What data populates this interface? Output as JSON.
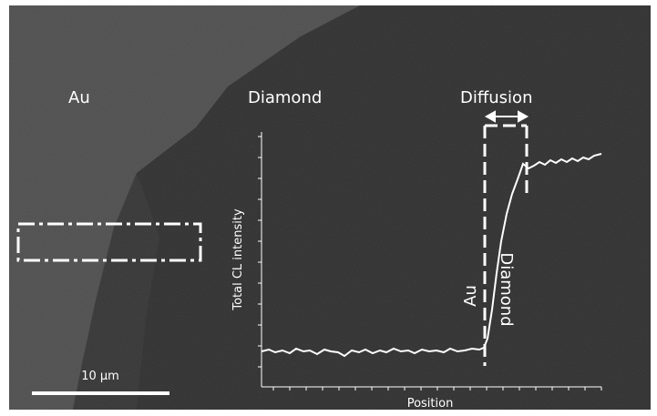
{
  "figure": {
    "regions": {
      "au": "Au",
      "diamond": "Diamond",
      "diffusion": "Diffusion"
    },
    "plot": {
      "y_axis_label": "Total CL intensity",
      "x_axis_label": "Position",
      "annotations": {
        "au": "Au",
        "diamond": "Diamond"
      }
    },
    "scale_bar": "10 µm"
  }
}
